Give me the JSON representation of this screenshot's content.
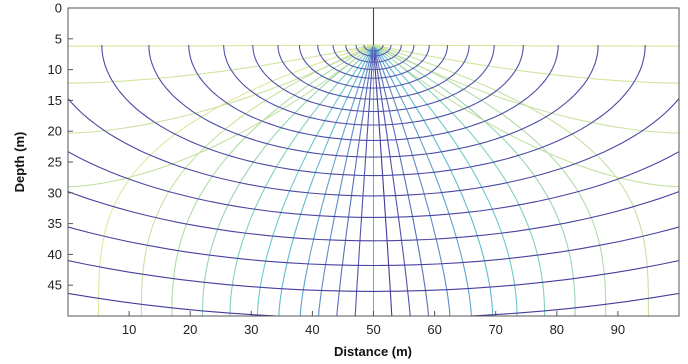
{
  "chart_data": {
    "type": "line",
    "title": "",
    "xlabel": "Distance (m)",
    "ylabel": "Depth (m)",
    "xlim": [
      0,
      100
    ],
    "ylim": [
      0,
      50
    ],
    "y_inverted": true,
    "grid": false,
    "legend": "none",
    "x_ticks": [
      10,
      20,
      30,
      40,
      50,
      60,
      70,
      80,
      90
    ],
    "y_ticks": [
      0,
      5,
      10,
      15,
      20,
      25,
      30,
      35,
      40,
      45
    ],
    "source_point": {
      "x": 50,
      "y": 6
    },
    "domain_depth": 50,
    "colormap": [
      "#e0e79a",
      "#9fd6b0",
      "#5fc6d3",
      "#5f83c8",
      "#45389a"
    ],
    "equipotential_depths": [
      1,
      1.8,
      2.8,
      4,
      5.4,
      7,
      8.8,
      10.8,
      13,
      15.5,
      18.2,
      21.2,
      24.5,
      28,
      31.8,
      35.8,
      40,
      44.4
    ],
    "equipotential_lines": [
      {
        "depth": 1
      },
      {
        "depth": 1.8
      },
      {
        "depth": 2.8
      },
      {
        "depth": 4
      },
      {
        "depth": 5.4
      },
      {
        "depth": 7
      },
      {
        "depth": 8.8
      },
      {
        "depth": 10.8
      },
      {
        "depth": 13
      },
      {
        "depth": 15.5
      },
      {
        "depth": 18.2
      },
      {
        "depth": 21.2
      },
      {
        "depth": 24.5
      },
      {
        "depth": 28
      },
      {
        "depth": 31.8
      },
      {
        "depth": 35.8
      },
      {
        "depth": 40
      },
      {
        "depth": 44.4
      }
    ],
    "streamline_base_distances": [
      5,
      12,
      17,
      22,
      26.5,
      31,
      34.5,
      38,
      41,
      44,
      47,
      50,
      53,
      56,
      59,
      62.5,
      66,
      69.5,
      73.5,
      78,
      83,
      88,
      95
    ],
    "left_boundary_crossings": [
      6.2,
      12.2,
      20.3,
      29
    ],
    "right_boundary_crossings": [
      6.2,
      12.2,
      20.3,
      29
    ]
  }
}
